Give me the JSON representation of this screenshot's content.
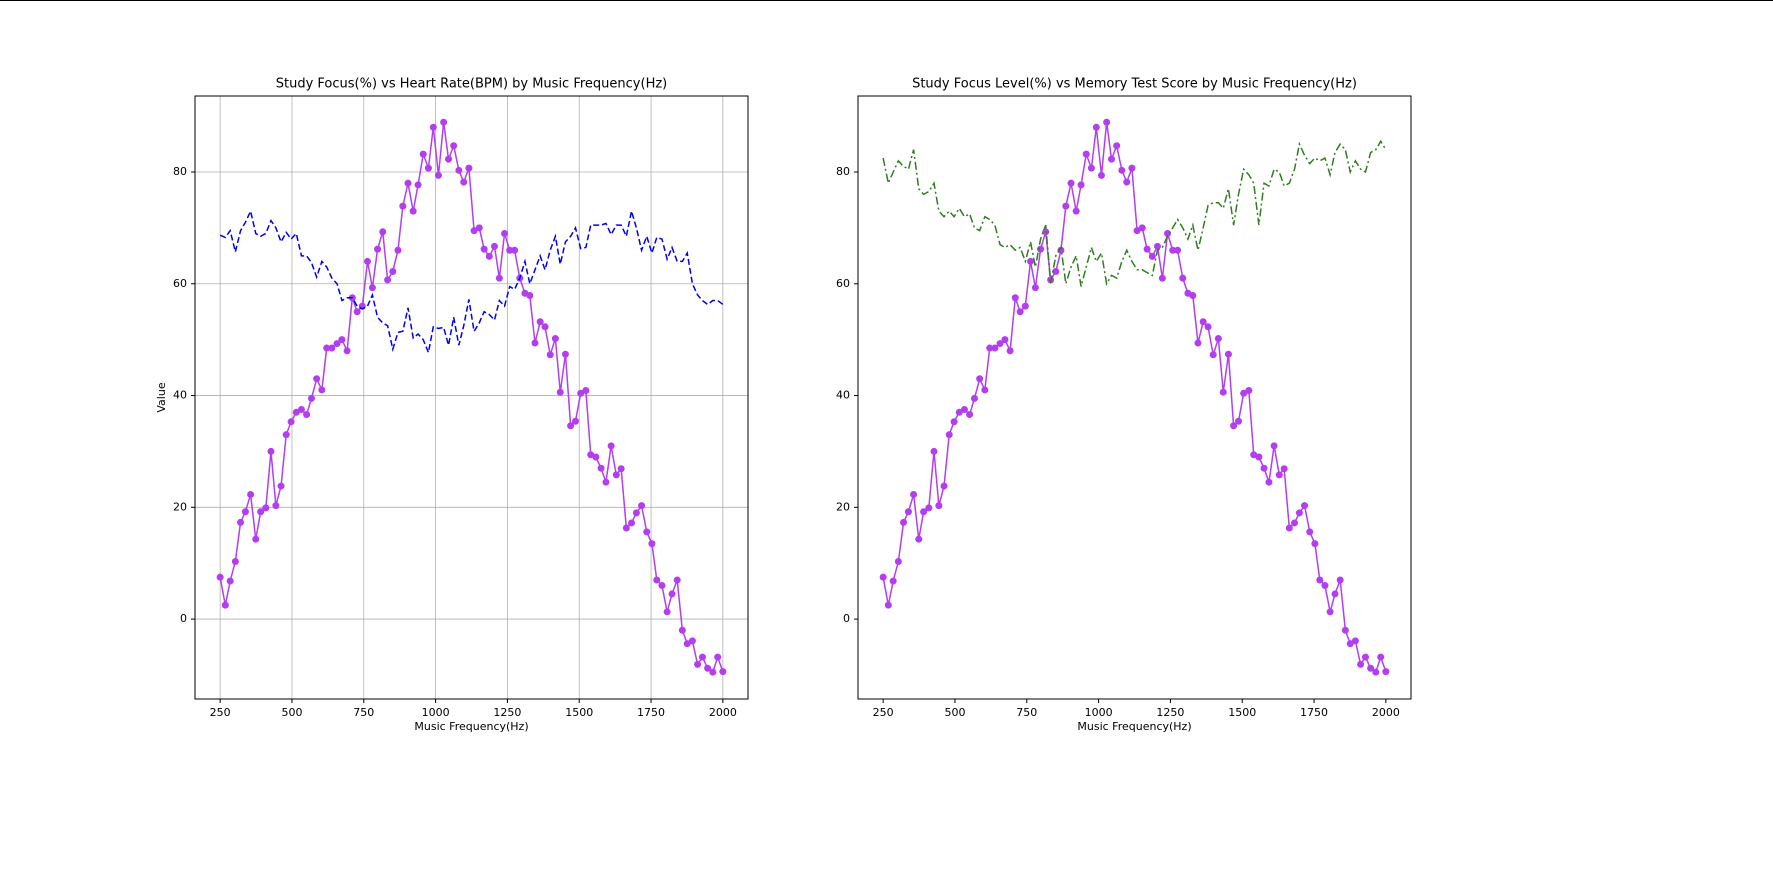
{
  "chart_data": [
    {
      "type": "line",
      "title": "Study Focus(%) vs Heart Rate(BPM) by Music Frequency(Hz)",
      "xlabel": "Music Frequency(Hz)",
      "ylabel": "Value",
      "x": [
        250,
        268,
        285,
        303,
        321,
        338,
        356,
        374,
        391,
        409,
        427,
        444,
        462,
        480,
        497,
        515,
        533,
        551,
        568,
        586,
        604,
        621,
        639,
        657,
        674,
        692,
        710,
        727,
        745,
        763,
        780,
        798,
        816,
        833,
        851,
        869,
        886,
        904,
        922,
        939,
        957,
        975,
        992,
        1010,
        1028,
        1045,
        1063,
        1081,
        1098,
        1116,
        1134,
        1152,
        1169,
        1187,
        1205,
        1222,
        1240,
        1258,
        1275,
        1293,
        1311,
        1328,
        1346,
        1364,
        1381,
        1399,
        1417,
        1434,
        1452,
        1470,
        1487,
        1505,
        1523,
        1540,
        1558,
        1576,
        1593,
        1611,
        1629,
        1646,
        1664,
        1682,
        1699,
        1717,
        1735,
        1753,
        1770,
        1788,
        1806,
        1823,
        1841,
        1859,
        1876,
        1894,
        1912,
        1929,
        1947,
        1965,
        1982,
        2000
      ],
      "series": [
        {
          "name": "Study Focus(%)",
          "color": "#b23ef0",
          "linestyle": "solid",
          "marker": "o",
          "values": [
            7.5,
            2.5,
            6.8,
            10.3,
            17.3,
            19.2,
            22.3,
            14.3,
            19.2,
            19.9,
            30,
            20.3,
            23.8,
            33,
            35.3,
            37,
            37.5,
            36.6,
            39.5,
            43,
            41,
            48.5,
            48.5,
            49.3,
            50,
            48,
            57.5,
            55,
            56,
            64,
            59.3,
            66.2,
            69.3,
            60.7,
            62.2,
            66,
            73.9,
            78,
            73,
            77.7,
            83.2,
            80.7,
            88,
            79.4,
            88.9,
            82.3,
            84.7,
            80.3,
            78.2,
            80.7,
            69.5,
            70,
            66.2,
            64.9,
            66.7,
            61,
            69,
            66,
            66,
            61,
            58.3,
            57.9,
            49.4,
            53.2,
            52.3,
            47.3,
            50.2,
            40.6,
            47.4,
            34.6,
            35.4,
            40.4,
            40.9,
            29.4,
            29,
            27,
            24.5,
            31,
            25.8,
            26.9,
            16.3,
            17.2,
            19,
            20.3,
            15.6,
            13.5,
            7,
            6,
            1.3,
            4.5,
            7,
            -2,
            -4.4,
            -3.9,
            -8.1,
            -6.8,
            -8.8,
            -9.5,
            -6.8,
            -9.4
          ]
        },
        {
          "name": "Heart Rate(BPM)",
          "color": "#0000ee",
          "linestyle": "dashed",
          "marker": "none",
          "values": [
            68.7,
            68.3,
            69.5,
            65.7,
            69.5,
            71,
            73,
            69,
            68.5,
            69,
            71.3,
            70,
            67.5,
            69.2,
            68,
            69,
            65,
            65,
            63.8,
            61.2,
            64,
            63,
            61,
            60,
            57,
            57.5,
            57.5,
            56,
            55.5,
            56,
            58,
            54,
            53,
            52.5,
            48.3,
            51.3,
            51.5,
            55.7,
            50.3,
            51,
            50,
            47.7,
            52.3,
            52,
            52.2,
            49,
            54,
            49,
            52.5,
            57.2,
            51.5,
            53,
            55,
            54.5,
            53.5,
            57,
            56,
            59.5,
            59,
            61,
            64,
            60,
            62.5,
            65,
            62.5,
            66,
            68.5,
            63.5,
            67.5,
            68.5,
            70,
            66.3,
            66.5,
            70.5,
            70.5,
            70.5,
            70.8,
            68.8,
            70.5,
            70.5,
            68.5,
            73,
            70,
            66,
            68.5,
            65.5,
            68.3,
            68,
            64.4,
            66.5,
            64,
            64,
            65.5,
            60,
            58,
            57,
            56.3,
            57,
            57,
            56.3
          ]
        }
      ],
      "xlim": [
        162.5,
        2087.5
      ],
      "ylim": [
        -14.3,
        93.6
      ],
      "xticks": [
        250,
        500,
        750,
        1000,
        1250,
        1500,
        1750,
        2000
      ],
      "yticks": [
        0,
        20,
        40,
        60,
        80
      ],
      "grid": true
    },
    {
      "type": "line",
      "title": "Study Focus Level(%) vs Memory Test Score by Music Frequency(Hz)",
      "xlabel": "Music Frequency(Hz)",
      "x": [
        250,
        268,
        285,
        303,
        321,
        338,
        356,
        374,
        391,
        409,
        427,
        444,
        462,
        480,
        497,
        515,
        533,
        551,
        568,
        586,
        604,
        621,
        639,
        657,
        674,
        692,
        710,
        727,
        745,
        763,
        780,
        798,
        816,
        833,
        851,
        869,
        886,
        904,
        922,
        939,
        957,
        975,
        992,
        1010,
        1028,
        1045,
        1063,
        1081,
        1098,
        1116,
        1134,
        1152,
        1169,
        1187,
        1205,
        1222,
        1240,
        1258,
        1275,
        1293,
        1311,
        1328,
        1346,
        1364,
        1381,
        1399,
        1417,
        1434,
        1452,
        1470,
        1487,
        1505,
        1523,
        1540,
        1558,
        1576,
        1593,
        1611,
        1629,
        1646,
        1664,
        1682,
        1699,
        1717,
        1735,
        1753,
        1770,
        1788,
        1806,
        1823,
        1841,
        1859,
        1876,
        1894,
        1912,
        1929,
        1947,
        1965,
        1982,
        2000
      ],
      "series": [
        {
          "name": "Study Focus Level(%)",
          "color": "#b23ef0",
          "linestyle": "solid",
          "marker": "o",
          "values": [
            7.5,
            2.5,
            6.8,
            10.3,
            17.3,
            19.2,
            22.3,
            14.3,
            19.2,
            19.9,
            30,
            20.3,
            23.8,
            33,
            35.3,
            37,
            37.5,
            36.6,
            39.5,
            43,
            41,
            48.5,
            48.5,
            49.3,
            50,
            48,
            57.5,
            55,
            56,
            64,
            59.3,
            66.2,
            69.3,
            60.7,
            62.2,
            66,
            73.9,
            78,
            73,
            77.7,
            83.2,
            80.7,
            88,
            79.4,
            88.9,
            82.3,
            84.7,
            80.3,
            78.2,
            80.7,
            69.5,
            70,
            66.2,
            64.9,
            66.7,
            61,
            69,
            66,
            66,
            61,
            58.3,
            57.9,
            49.4,
            53.2,
            52.3,
            47.3,
            50.2,
            40.6,
            47.4,
            34.6,
            35.4,
            40.4,
            40.9,
            29.4,
            29,
            27,
            24.5,
            31,
            25.8,
            26.9,
            16.3,
            17.2,
            19,
            20.3,
            15.6,
            13.5,
            7,
            6,
            1.3,
            4.5,
            7,
            -2,
            -4.4,
            -3.9,
            -8.1,
            -6.8,
            -8.8,
            -9.5,
            -6.8,
            -9.4
          ]
        },
        {
          "name": "Memory Test Score",
          "color": "#2e7d1f",
          "linestyle": "dashdot",
          "marker": "none",
          "values": [
            82.5,
            78,
            80,
            82,
            81,
            80.5,
            84,
            77,
            76,
            76.5,
            78,
            73,
            72,
            73,
            72,
            73.5,
            72,
            72.5,
            70,
            69.5,
            72,
            71.5,
            70.5,
            67,
            66.5,
            67,
            66,
            66.5,
            64,
            67.5,
            63,
            68,
            70.5,
            60,
            65,
            66.5,
            60,
            63,
            65,
            59.5,
            63,
            66.5,
            64,
            65.5,
            60,
            61.5,
            61,
            64,
            66,
            64,
            62.5,
            62.5,
            62,
            61.5,
            66,
            66.5,
            68.5,
            70,
            71.5,
            70,
            68,
            70.5,
            66,
            70,
            74,
            74.5,
            74.5,
            73.5,
            77,
            70.5,
            76,
            80.5,
            79.5,
            78,
            70.5,
            78,
            77.5,
            80.5,
            80,
            77.5,
            78,
            80.5,
            85,
            83,
            81.5,
            82.5,
            82,
            82.5,
            79.5,
            83.5,
            85,
            84,
            80,
            82,
            80.5,
            80,
            83.5,
            84,
            85.5,
            84
          ]
        }
      ],
      "xlim": [
        162.5,
        2087.5
      ],
      "ylim": [
        -14.3,
        93.6
      ],
      "xticks": [
        250,
        500,
        750,
        1000,
        1250,
        1500,
        1750,
        2000
      ],
      "yticks": [
        0,
        20,
        40,
        60,
        80
      ],
      "grid": false
    }
  ]
}
